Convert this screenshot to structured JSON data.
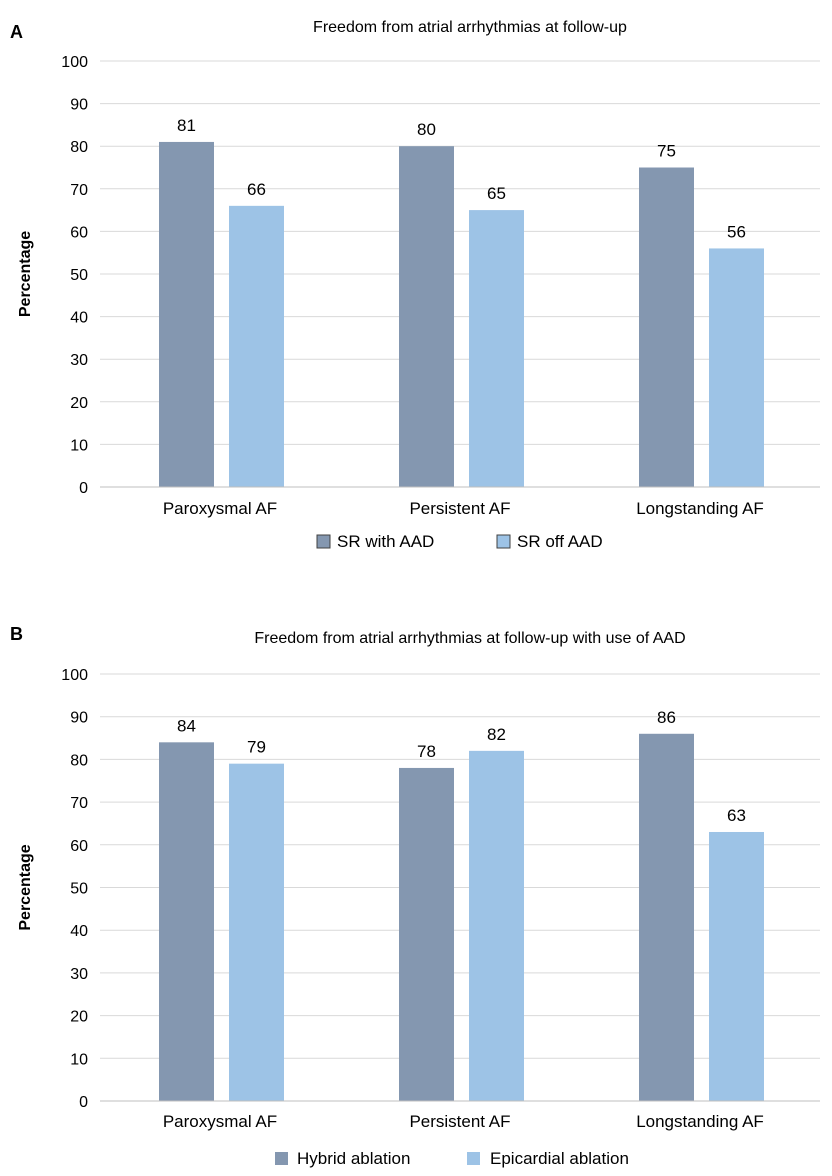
{
  "chart_data": [
    {
      "panel": "A",
      "type": "bar",
      "title": "Freedom from atrial arrhythmias at follow-up",
      "xlabel": "",
      "ylabel": "Percentage",
      "ylim": [
        0,
        100
      ],
      "yticks": [
        0,
        10,
        20,
        30,
        40,
        50,
        60,
        70,
        80,
        90,
        100
      ],
      "categories": [
        "Paroxysmal AF",
        "Persistent AF",
        "Longstanding AF"
      ],
      "series": [
        {
          "name": "SR with AAD",
          "color": "#8497b0",
          "values": [
            81,
            80,
            75
          ],
          "labels": [
            "81",
            "80",
            "75"
          ]
        },
        {
          "name": "SR off AAD",
          "color": "#9dc3e6",
          "values": [
            66,
            65,
            56
          ],
          "labels": [
            "66",
            "65",
            "56"
          ]
        }
      ],
      "grid": true,
      "legend": "bottom",
      "legend_marker_outline": true
    },
    {
      "panel": "B",
      "type": "bar",
      "title": "Freedom from atrial arrhythmias at follow-up with use of AAD",
      "xlabel": "",
      "ylabel": "Percentage",
      "ylim": [
        0,
        100
      ],
      "yticks": [
        0,
        10,
        20,
        30,
        40,
        50,
        60,
        70,
        80,
        90,
        100
      ],
      "categories": [
        "Paroxysmal AF",
        "Persistent AF",
        "Longstanding AF"
      ],
      "series": [
        {
          "name": "Hybrid ablation",
          "color": "#8497b0",
          "values": [
            84,
            78,
            86
          ],
          "labels": [
            "84",
            "78",
            "86"
          ]
        },
        {
          "name": "Epicardial ablation",
          "color": "#9dc3e6",
          "values": [
            79,
            82,
            63
          ],
          "labels": [
            "79",
            "82",
            "63"
          ]
        }
      ],
      "grid": true,
      "legend": "bottom",
      "legend_marker_outline": false
    }
  ]
}
